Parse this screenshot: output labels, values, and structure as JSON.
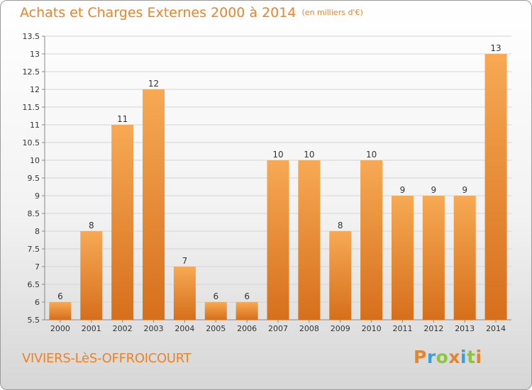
{
  "title": "Achats et Charges Externes 2000 à 2014",
  "unit": "(en milliers d'€)",
  "commune": "VIVIERS-LèS-OFFROICOURT",
  "logo": {
    "letters": [
      "P",
      "r",
      "o",
      "x",
      "i",
      "t",
      "i"
    ],
    "colors": [
      "#e8842a",
      "#3aa0d8",
      "#8cc63f",
      "#e8842a",
      "#3aa0d8",
      "#8cc63f",
      "#e8842a"
    ]
  },
  "colors": {
    "accent": "#e8842a",
    "bar_light": "#f7a954",
    "bar_dark": "#d9741e"
  },
  "chart_data": {
    "type": "bar",
    "title": "Achats et Charges Externes 2000 à 2014",
    "xlabel": "",
    "ylabel": "",
    "categories": [
      "2000",
      "2001",
      "2002",
      "2003",
      "2004",
      "2005",
      "2006",
      "2007",
      "2008",
      "2009",
      "2010",
      "2011",
      "2012",
      "2013",
      "2014"
    ],
    "values": [
      6,
      8,
      11,
      12,
      7,
      6,
      6,
      10,
      10,
      8,
      10,
      9,
      9,
      9,
      13
    ],
    "labels": [
      "6",
      "8",
      "11",
      "12",
      "7",
      "6",
      "6",
      "10",
      "10",
      "8",
      "10",
      "9",
      "9",
      "9",
      "13"
    ],
    "ylim": [
      5.5,
      13.5
    ],
    "yticks": [
      5.5,
      6,
      6.5,
      7,
      7.5,
      8,
      8.5,
      9,
      9.5,
      10,
      10.5,
      11,
      11.5,
      12,
      12.5,
      13,
      13.5
    ],
    "ytick_labels": [
      "5.5",
      "6",
      "6.5",
      "7",
      "7.5",
      "8",
      "8.5",
      "9",
      "9.5",
      "10",
      "10.5",
      "11",
      "11.5",
      "12",
      "12.5",
      "13",
      "13.5"
    ],
    "grid": "horizontal",
    "legend": "none"
  }
}
